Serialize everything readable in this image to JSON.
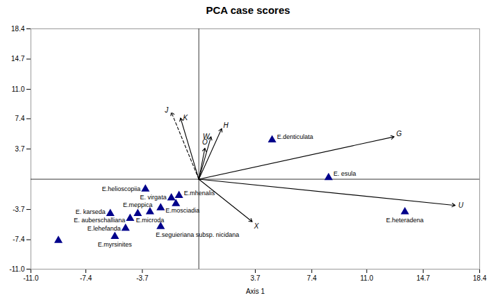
{
  "chart_data": {
    "type": "scatter",
    "title": "PCA case scores",
    "x_label": "Axis 1",
    "xlim": [
      -11.0,
      18.4
    ],
    "ylim": [
      -11.0,
      18.4
    ],
    "xticks": [
      {
        "value": -11.0,
        "label": "-11.0"
      },
      -7.4,
      -3.7,
      3.7,
      7.4,
      {
        "value": 11.0,
        "label": "11.0"
      },
      14.7,
      18.4
    ],
    "yticks": [
      {
        "value": -11.0,
        "label": "-11.0"
      },
      -7.4,
      -3.7,
      3.7,
      7.4,
      {
        "value": 11.0,
        "label": "11.0"
      },
      14.7,
      18.4
    ],
    "grid": false,
    "origin": [
      0,
      0
    ],
    "series": [
      {
        "type": "scatter",
        "marker": "triangle",
        "color": "#00008B",
        "x": [
          -9.2,
          -5.5,
          -4.8,
          -2.5,
          -4.5,
          -5.8,
          -4.0,
          -3.2,
          -2.5,
          -1.5,
          -1.8,
          -1.3,
          -3.5,
          4.8,
          8.5,
          13.5
        ],
        "y": [
          -7.5,
          -7.0,
          -6.0,
          -5.8,
          -4.8,
          -4.2,
          -4.2,
          -4.0,
          -3.5,
          -3.0,
          -2.3,
          -2.0,
          -1.2,
          4.8,
          0.2,
          -4.0
        ],
        "labels": [
          null,
          "E.myrsinites",
          "E.lehefanda",
          "E.seguieriana subsp. nicidana",
          "E. auberschalliana",
          "E. karseda",
          "E.meppica",
          "E.microda",
          "E.mosciadia",
          null,
          "E. virgata",
          "E.mhenalis",
          "E.helioscopiia",
          "E.denticulata",
          "E. esula",
          "E.heteradena"
        ]
      },
      {
        "type": "arrow",
        "line_style": "dashed",
        "color": "black",
        "x": [
          -1.8
        ],
        "y": [
          8.2
        ],
        "labels": [
          "J"
        ]
      },
      {
        "type": "arrow",
        "line_style": "solid",
        "color": "black",
        "x": [
          -1.2,
          1.5,
          0.8,
          0.4,
          12.8,
          16.8,
          3.5
        ],
        "y": [
          7.5,
          6.2,
          5.2,
          3.8,
          5.2,
          -3.2,
          -5.2
        ],
        "labels": [
          "K",
          "H",
          "W",
          "O",
          "G",
          "U",
          "X"
        ]
      }
    ]
  }
}
